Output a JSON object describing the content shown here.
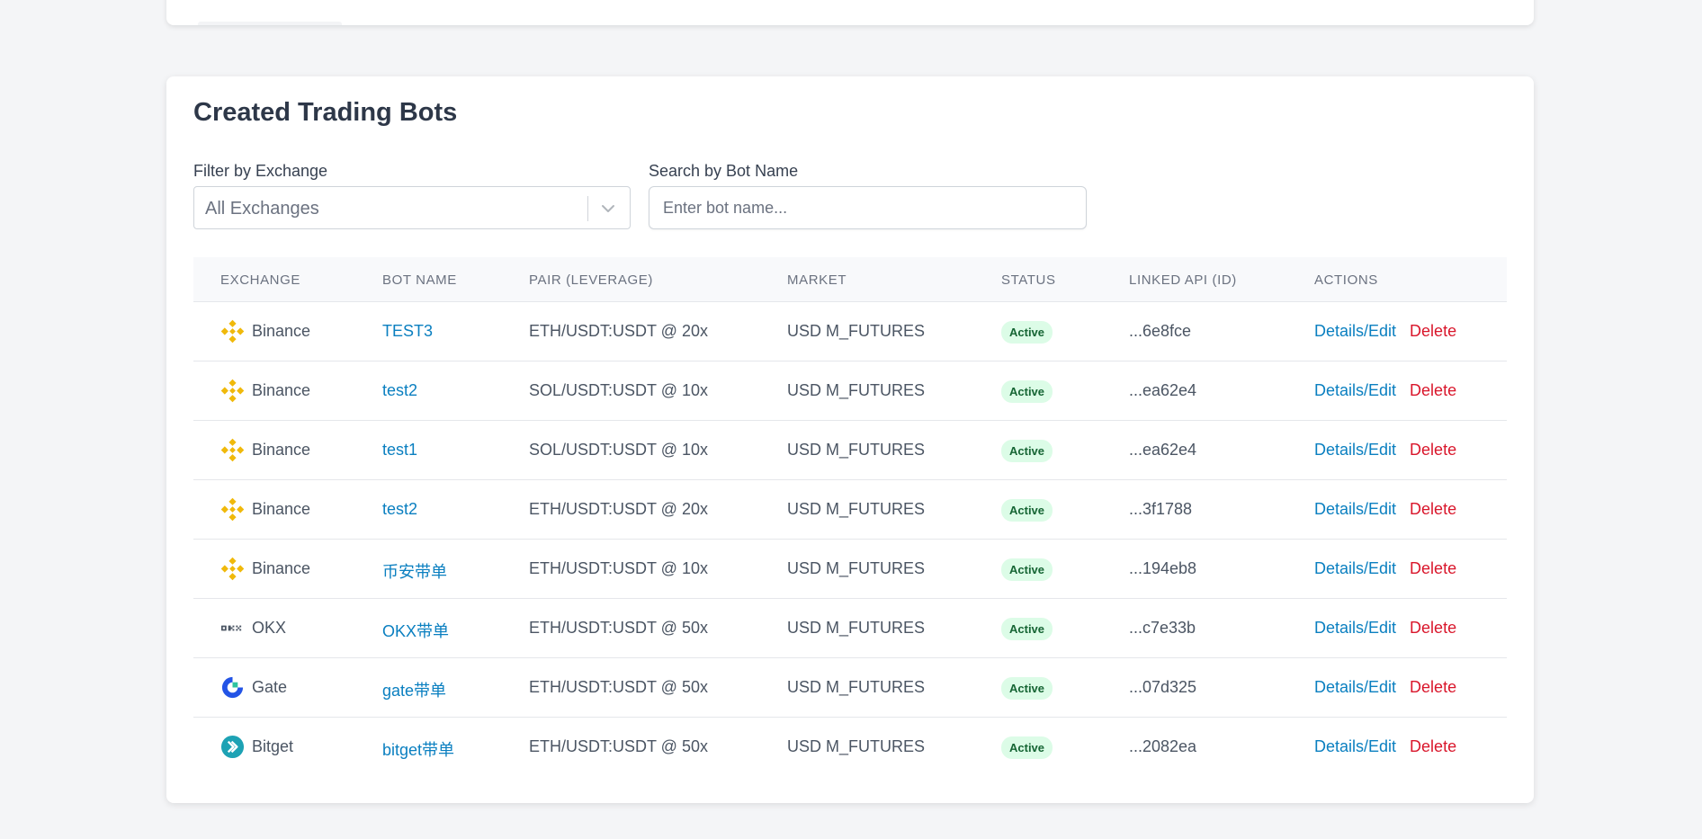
{
  "section": {
    "title": "Created Trading Bots"
  },
  "filters": {
    "exchange_label": "Filter by Exchange",
    "exchange_value": "All Exchanges",
    "search_label": "Search by Bot Name",
    "search_placeholder": "Enter bot name..."
  },
  "table": {
    "headers": [
      "EXCHANGE",
      "BOT NAME",
      "PAIR (LEVERAGE)",
      "MARKET",
      "STATUS",
      "LINKED API (ID)",
      "ACTIONS"
    ],
    "actions": {
      "edit_label": "Details/Edit",
      "delete_label": "Delete"
    },
    "rows": [
      {
        "exchange": "Binance",
        "icon": "binance-icon",
        "bot_name": "TEST3",
        "pair": "ETH/USDT:USDT @ 20x",
        "market": "USD M_FUTURES",
        "status": "Active",
        "api_id": "...6e8fce"
      },
      {
        "exchange": "Binance",
        "icon": "binance-icon",
        "bot_name": "test2",
        "pair": "SOL/USDT:USDT @ 10x",
        "market": "USD M_FUTURES",
        "status": "Active",
        "api_id": "...ea62e4"
      },
      {
        "exchange": "Binance",
        "icon": "binance-icon",
        "bot_name": "test1",
        "pair": "SOL/USDT:USDT @ 10x",
        "market": "USD M_FUTURES",
        "status": "Active",
        "api_id": "...ea62e4"
      },
      {
        "exchange": "Binance",
        "icon": "binance-icon",
        "bot_name": "test2",
        "pair": "ETH/USDT:USDT @ 20x",
        "market": "USD M_FUTURES",
        "status": "Active",
        "api_id": "...3f1788"
      },
      {
        "exchange": "Binance",
        "icon": "binance-icon",
        "bot_name": "币安带单",
        "pair": "ETH/USDT:USDT @ 10x",
        "market": "USD M_FUTURES",
        "status": "Active",
        "api_id": "...194eb8"
      },
      {
        "exchange": "OKX",
        "icon": "okx-icon",
        "bot_name": "OKX带单",
        "pair": "ETH/USDT:USDT @ 50x",
        "market": "USD M_FUTURES",
        "status": "Active",
        "api_id": "...c7e33b"
      },
      {
        "exchange": "Gate",
        "icon": "gate-icon",
        "bot_name": "gate带单",
        "pair": "ETH/USDT:USDT @ 50x",
        "market": "USD M_FUTURES",
        "status": "Active",
        "api_id": "...07d325"
      },
      {
        "exchange": "Bitget",
        "icon": "bitget-icon",
        "bot_name": "bitget带单",
        "pair": "ETH/USDT:USDT @ 50x",
        "market": "USD M_FUTURES",
        "status": "Active",
        "api_id": "...2082ea"
      }
    ]
  },
  "colors": {
    "link": "#0a7fc0",
    "delete": "#d9162b",
    "badge_bg": "#dcfce7",
    "badge_text": "#166534",
    "binance": "#f0b90b",
    "gate": "#2354e6",
    "bitget": "#1da2b4"
  }
}
